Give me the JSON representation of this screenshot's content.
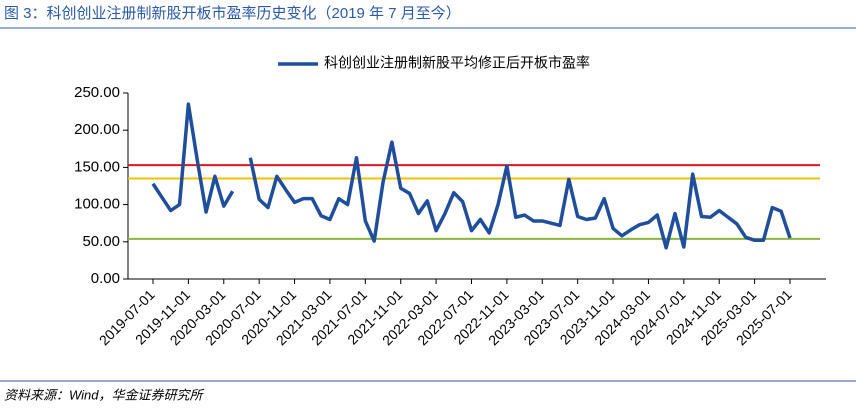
{
  "chart_data": {
    "type": "line",
    "title": "图 3：科创创业注册制新股开板市盈率历史变化（2019 年 7 月至今）",
    "source": "资料来源：Wind，华金证券研究所",
    "categories": [
      "2019-07-01",
      null,
      null,
      null,
      "2019-11-01",
      null,
      null,
      null,
      "2020-03-01",
      null,
      null,
      null,
      "2020-07-01",
      null,
      null,
      null,
      "2020-11-01",
      null,
      null,
      null,
      "2021-03-01",
      null,
      null,
      null,
      "2021-07-01",
      null,
      null,
      null,
      "2021-11-01",
      null,
      null,
      null,
      "2022-03-01",
      null,
      null,
      null,
      "2022-07-01",
      null,
      null,
      null,
      "2022-11-01",
      null,
      null,
      null,
      "2023-03-01",
      null,
      null,
      null,
      "2023-07-01",
      null,
      null,
      null,
      "2023-11-01",
      null,
      null,
      null,
      "2024-03-01",
      null,
      null,
      null,
      "2024-07-01",
      null,
      null,
      null,
      "2024-11-01",
      null,
      null,
      null,
      "2025-03-01",
      null,
      null,
      null,
      "2025-07-01"
    ],
    "series": [
      {
        "name": "科创创业注册制新股平均修正后开板市盈率",
        "color": "#1f4e9c",
        "values": [
          128,
          110,
          92,
          100,
          235,
          160,
          90,
          138,
          98,
          118,
          null,
          163,
          107,
          96,
          138,
          120,
          103,
          108,
          108,
          85,
          80,
          108,
          100,
          163,
          78,
          51,
          130,
          184,
          122,
          115,
          88,
          105,
          65,
          88,
          116,
          104,
          65,
          80,
          62,
          100,
          152,
          83,
          86,
          78,
          78,
          75,
          72,
          134,
          84,
          80,
          82,
          108,
          68,
          58,
          66,
          73,
          76,
          86,
          42,
          88,
          43,
          141,
          84,
          83,
          92,
          83,
          74,
          56,
          52,
          52,
          96,
          91,
          55
        ]
      }
    ],
    "reference_lines": [
      {
        "value": 153,
        "color": "#e8141b"
      },
      {
        "value": 135,
        "color": "#f5c000"
      },
      {
        "value": 54,
        "color": "#8ab43c"
      }
    ],
    "ylim": [
      0,
      250
    ],
    "yticks": [
      {
        "value": 0,
        "label": "0.00"
      },
      {
        "value": 50,
        "label": "50.00"
      },
      {
        "value": 100,
        "label": "100.00"
      },
      {
        "value": 150,
        "label": "150.00"
      },
      {
        "value": 200,
        "label": "200.00"
      },
      {
        "value": 250,
        "label": "250.00"
      }
    ],
    "legend": "top"
  }
}
